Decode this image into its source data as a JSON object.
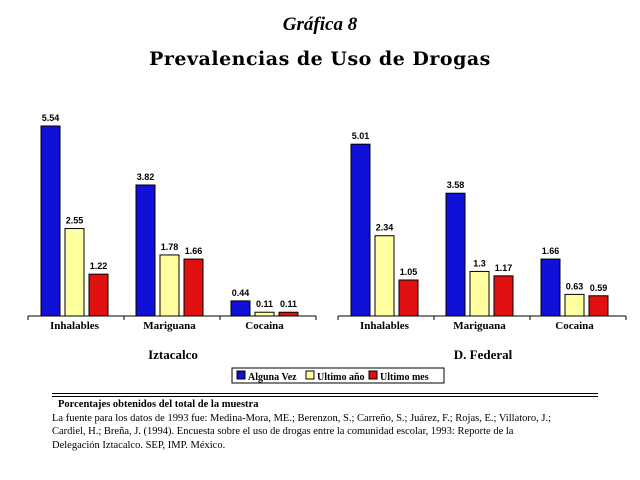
{
  "titles": {
    "figure": "Gráfica 8",
    "main": "Prevalencias de Uso de Drogas"
  },
  "chart_data": {
    "type": "bar",
    "ylim": [
      0,
      5.54
    ],
    "grid": false,
    "legend_position": "bottom-center",
    "groups": [
      {
        "name": "Iztacalco",
        "categories": [
          "Inhalables",
          "Mariguana",
          "Cocaina"
        ],
        "series": [
          {
            "name": "Alguna Vez",
            "values": [
              5.54,
              3.82,
              0.44
            ],
            "labels": [
              "5.54",
              "3.82",
              "0.44"
            ]
          },
          {
            "name": "Ultimo año",
            "values": [
              2.55,
              1.78,
              0.11
            ],
            "labels": [
              "2.55",
              "1.78",
              "0.11"
            ]
          },
          {
            "name": "Ultimo mes",
            "values": [
              1.22,
              1.66,
              0.11
            ],
            "labels": [
              "1.22",
              "1.66",
              "0.11"
            ]
          }
        ]
      },
      {
        "name": "D. Federal",
        "categories": [
          "Inhalables",
          "Mariguana",
          "Cocaina"
        ],
        "series": [
          {
            "name": "Alguna Vez",
            "values": [
              5.01,
              3.58,
              1.66
            ],
            "labels": [
              "5.01",
              "3.58",
              "1.66"
            ]
          },
          {
            "name": "Ultimo año",
            "values": [
              2.34,
              1.3,
              0.63
            ],
            "labels": [
              "2.34",
              "1.3",
              "0.63"
            ]
          },
          {
            "name": "Ultimo mes",
            "values": [
              1.05,
              1.17,
              0.59
            ],
            "labels": [
              "1.05",
              "1.17",
              "0.59"
            ]
          }
        ]
      }
    ],
    "legend": [
      "Alguna Vez",
      "Ultimo año",
      "Ultimo mes"
    ],
    "colors": [
      "#1010d8",
      "#ffffa0",
      "#e01010"
    ]
  },
  "footer": {
    "note": "Porcentajes obtenidos del total de la muestra",
    "line1": "La fuente para los datos de 1993 fue: Medina-Mora, ME.; Berenzon, S.; Carreño, S.; Juárez, F.; Rojas, E.; Villatoro, J.;",
    "line2": "Cardiel, H.; Breña, J. (1994). Encuesta sobre el uso de drogas entre la comunidad escolar, 1993: Reporte de la",
    "line3": "Delegación Iztacalco. SEP, IMP. México."
  }
}
